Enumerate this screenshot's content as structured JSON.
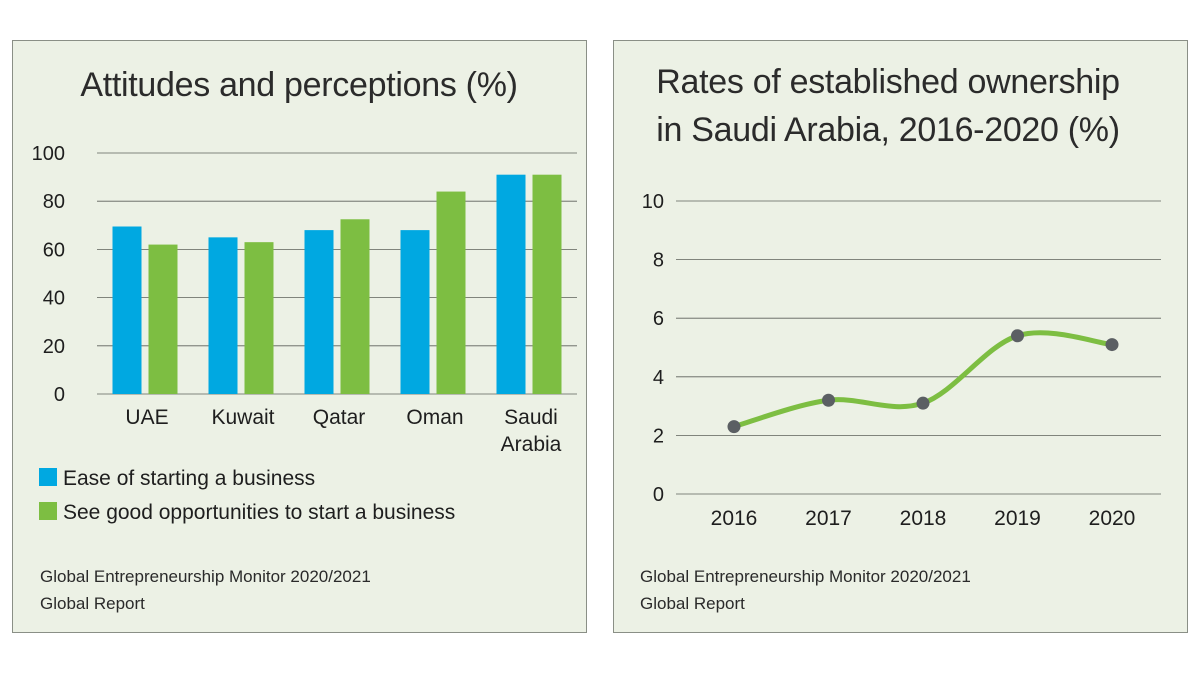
{
  "colors": {
    "ease": "#00a8e1",
    "opportunity": "#7dbe42",
    "marker": "#5b5f63",
    "background": "#ecf1e5"
  },
  "chart_data": [
    {
      "type": "bar",
      "title": "Attitudes and perceptions (%)",
      "categories": [
        [
          "UAE"
        ],
        [
          "Kuwait"
        ],
        [
          "Qatar"
        ],
        [
          "Oman"
        ],
        [
          "Saudi",
          "Arabia"
        ]
      ],
      "series": [
        {
          "name": "Ease of starting a business",
          "values": [
            69.5,
            65,
            68,
            68,
            91
          ]
        },
        {
          "name": "See good opportunities to start a business",
          "values": [
            62,
            63,
            72.5,
            84,
            91
          ]
        }
      ],
      "y_ticks": [
        "0",
        "20",
        "40",
        "60",
        "80",
        "100"
      ],
      "ylim": [
        0,
        100
      ],
      "grid": true,
      "legend_position": "bottom-left",
      "source_lines": [
        "Global Entrepreneurship Monitor 2020/2021",
        "Global Report"
      ]
    },
    {
      "type": "line",
      "title_lines": [
        "Rates of established ownership",
        "in Saudi Arabia, 2016-2020 (%)"
      ],
      "x": [
        "2016",
        "2017",
        "2018",
        "2019",
        "2020"
      ],
      "values": [
        2.3,
        3.2,
        3.1,
        5.4,
        5.1
      ],
      "y_ticks": [
        "0",
        "2",
        "4",
        "6",
        "8",
        "10"
      ],
      "ylim": [
        0,
        10
      ],
      "grid": true,
      "source_lines": [
        "Global Entrepreneurship Monitor 2020/2021",
        "Global Report"
      ]
    }
  ]
}
